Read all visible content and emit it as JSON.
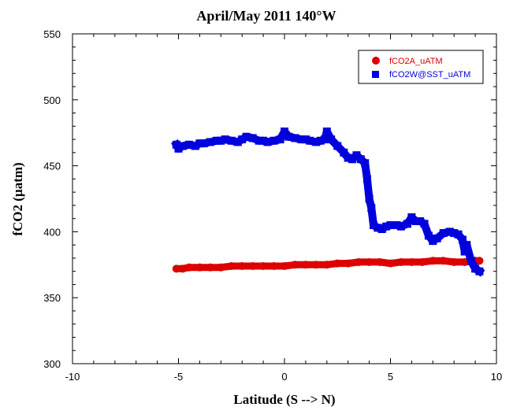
{
  "chart_data": {
    "type": "scatter",
    "title": "April/May 2011 140°W",
    "xlabel": "Latitude (S --> N)",
    "ylabel": "fCO2 (µatm)",
    "xlim": [
      -10,
      10
    ],
    "ylim": [
      300,
      550
    ],
    "xticks": [
      -10,
      -5,
      0,
      5,
      10
    ],
    "yticks": [
      300,
      350,
      400,
      450,
      500,
      550
    ],
    "legend_position": "top-right",
    "grid": false,
    "series": [
      {
        "name": "fCO2A_uATM",
        "color": "#dd0000",
        "marker": "circle",
        "x": [
          -5.1,
          -4.8,
          -4.5,
          -4.0,
          -3.5,
          -3.0,
          -2.5,
          -2.0,
          -1.5,
          -1.0,
          -0.5,
          0.0,
          0.5,
          1.0,
          1.5,
          2.0,
          2.5,
          3.0,
          3.5,
          4.0,
          4.5,
          5.0,
          5.5,
          6.0,
          6.5,
          7.0,
          7.5,
          8.0,
          8.5,
          9.0,
          9.2
        ],
        "y": [
          372,
          372,
          373,
          373,
          373,
          373,
          374,
          374,
          374,
          374,
          374,
          374,
          375,
          375,
          375,
          375,
          376,
          376,
          377,
          377,
          377,
          376,
          377,
          377,
          377,
          378,
          378,
          377,
          377,
          378,
          378
        ]
      },
      {
        "name": "fCO2W@SST_uATM",
        "color": "#0000dd",
        "marker": "square",
        "x": [
          -5.1,
          -5.0,
          -4.8,
          -4.5,
          -4.2,
          -4.0,
          -3.8,
          -3.5,
          -3.2,
          -3.0,
          -2.8,
          -2.5,
          -2.2,
          -2.0,
          -1.8,
          -1.5,
          -1.2,
          -1.0,
          -0.8,
          -0.5,
          -0.2,
          0.0,
          0.2,
          0.5,
          0.8,
          1.0,
          1.2,
          1.5,
          1.7,
          1.9,
          2.0,
          2.2,
          2.5,
          2.8,
          3.0,
          3.2,
          3.4,
          3.6,
          3.8,
          3.9,
          4.0,
          4.1,
          4.2,
          4.4,
          4.6,
          4.8,
          5.0,
          5.3,
          5.5,
          5.8,
          6.0,
          6.2,
          6.4,
          6.6,
          6.8,
          7.0,
          7.2,
          7.5,
          7.8,
          8.0,
          8.2,
          8.4,
          8.5,
          8.6,
          8.8,
          9.0,
          9.2
        ],
        "y": [
          466,
          463,
          465,
          466,
          465,
          467,
          467,
          468,
          469,
          469,
          470,
          469,
          468,
          470,
          472,
          471,
          469,
          469,
          468,
          469,
          470,
          476,
          472,
          471,
          470,
          470,
          469,
          468,
          469,
          470,
          476,
          470,
          465,
          460,
          456,
          455,
          458,
          455,
          452,
          440,
          425,
          418,
          405,
          403,
          402,
          404,
          405,
          405,
          404,
          406,
          411,
          408,
          408,
          406,
          397,
          393,
          395,
          399,
          400,
          399,
          398,
          394,
          385,
          390,
          378,
          372,
          370
        ]
      }
    ]
  }
}
